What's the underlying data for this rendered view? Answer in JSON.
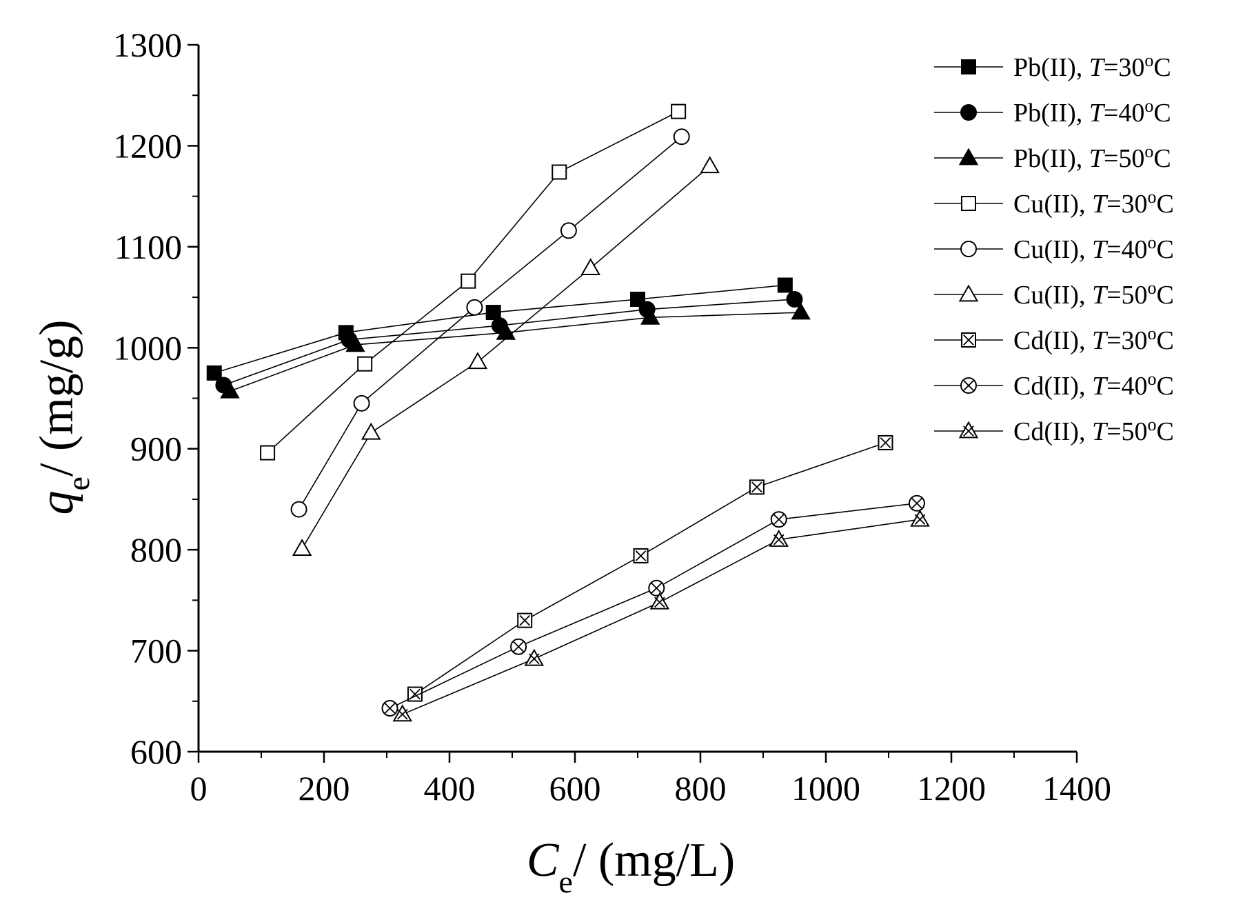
{
  "chart_data": {
    "type": "line",
    "title": "",
    "xlabel": {
      "symbol": "C",
      "subscript": "e",
      "unit": "/ (mg/L)"
    },
    "ylabel": {
      "symbol": "q",
      "subscript": "e",
      "unit": "/ (mg/g)"
    },
    "xlim": [
      0,
      1400
    ],
    "ylim": [
      600,
      1300
    ],
    "xticks": [
      0,
      200,
      400,
      600,
      800,
      1000,
      1200,
      1400
    ],
    "yticks": [
      600,
      700,
      800,
      900,
      1000,
      1100,
      1200,
      1300
    ],
    "grid": false,
    "legend_position": "top-right",
    "series": [
      {
        "name": "Pb(II), T=30oC",
        "metal": "Pb(II)",
        "temp": "30",
        "marker": "square-filled",
        "x": [
          25,
          235,
          470,
          700,
          935
        ],
        "y": [
          975,
          1015,
          1035,
          1048,
          1062
        ]
      },
      {
        "name": "Pb(II), T=40oC",
        "metal": "Pb(II)",
        "temp": "40",
        "marker": "circle-filled",
        "x": [
          40,
          240,
          480,
          715,
          950
        ],
        "y": [
          963,
          1008,
          1022,
          1038,
          1048
        ]
      },
      {
        "name": "Pb(II), T=50oC",
        "metal": "Pb(II)",
        "temp": "50",
        "marker": "triangle-filled",
        "x": [
          50,
          250,
          490,
          720,
          960
        ],
        "y": [
          957,
          1003,
          1015,
          1030,
          1035
        ]
      },
      {
        "name": "Cu(II), T=30oC",
        "metal": "Cu(II)",
        "temp": "30",
        "marker": "square-open",
        "x": [
          110,
          265,
          430,
          575,
          765
        ],
        "y": [
          896,
          984,
          1066,
          1174,
          1234
        ]
      },
      {
        "name": "Cu(II), T=40oC",
        "metal": "Cu(II)",
        "temp": "40",
        "marker": "circle-open",
        "x": [
          160,
          260,
          440,
          590,
          770
        ],
        "y": [
          840,
          945,
          1040,
          1116,
          1209
        ]
      },
      {
        "name": "Cu(II), T=50oC",
        "metal": "Cu(II)",
        "temp": "50",
        "marker": "triangle-open",
        "x": [
          165,
          275,
          445,
          625,
          815
        ],
        "y": [
          801,
          916,
          986,
          1079,
          1180
        ]
      },
      {
        "name": "Cd(II), T=30oC",
        "metal": "Cd(II)",
        "temp": "30",
        "marker": "square-x",
        "x": [
          345,
          520,
          705,
          890,
          1095
        ],
        "y": [
          657,
          730,
          794,
          862,
          906
        ]
      },
      {
        "name": "Cd(II), T=40oC",
        "metal": "Cd(II)",
        "temp": "40",
        "marker": "circle-x",
        "x": [
          305,
          510,
          730,
          925,
          1145
        ],
        "y": [
          643,
          704,
          762,
          830,
          846
        ]
      },
      {
        "name": "Cd(II), T=50oC",
        "metal": "Cd(II)",
        "temp": "50",
        "marker": "triangle-x",
        "x": [
          325,
          535,
          735,
          925,
          1150
        ],
        "y": [
          637,
          692,
          748,
          810,
          830
        ]
      }
    ],
    "legend_prefix_T": "T",
    "legend_degree_o": "o",
    "legend_degree_C": "C",
    "legend_equals": "="
  }
}
